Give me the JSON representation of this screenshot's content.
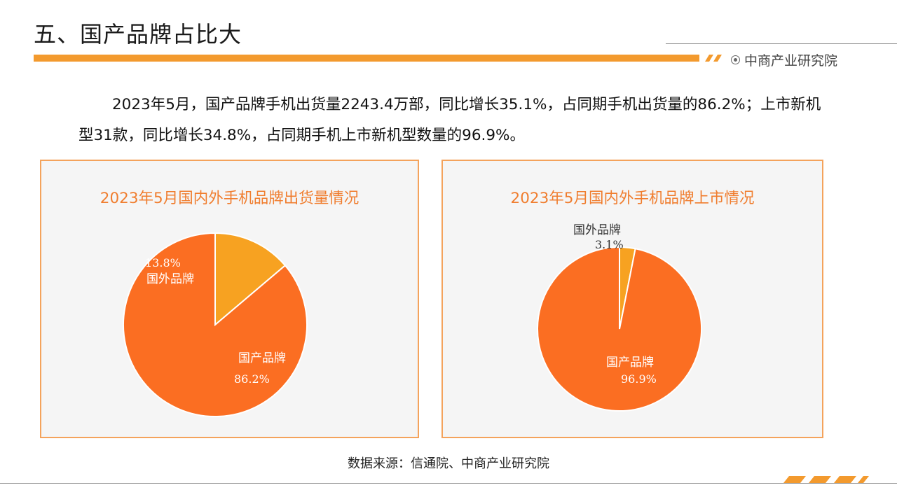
{
  "header": {
    "title": "五、国产品牌占比大",
    "brand": "中商产业研究院"
  },
  "summary": "2023年5月，国产品牌手机出货量2243.4万部，同比增长35.1%，占同期手机出货量的86.2%；上市新机型31款，同比增长34.8%，占同期手机上市新机型数量的96.9%。",
  "source": "数据来源：信通院、中商产业研究院",
  "colors": {
    "domestic": "#fb6e22",
    "foreign": "#f7a221",
    "panel_border": "#f4a35c",
    "accent_bar": "#f39a2e"
  },
  "chart_data": [
    {
      "type": "pie",
      "title": "2023年5月国内外手机品牌出货量情况",
      "slices": [
        {
          "label": "国外品牌",
          "value": 13.8,
          "value_label": "13.8%",
          "color": "#f7a221"
        },
        {
          "label": "国产品牌",
          "value": 86.2,
          "value_label": "86.2%",
          "color": "#fb6e22"
        }
      ]
    },
    {
      "type": "pie",
      "title": "2023年5月国内外手机品牌上市情况",
      "slices": [
        {
          "label": "国外品牌",
          "value": 3.1,
          "value_label": "3.1%",
          "color": "#f7a221"
        },
        {
          "label": "国产品牌",
          "value": 96.9,
          "value_label": "96.9%",
          "color": "#fb6e22"
        }
      ]
    }
  ]
}
